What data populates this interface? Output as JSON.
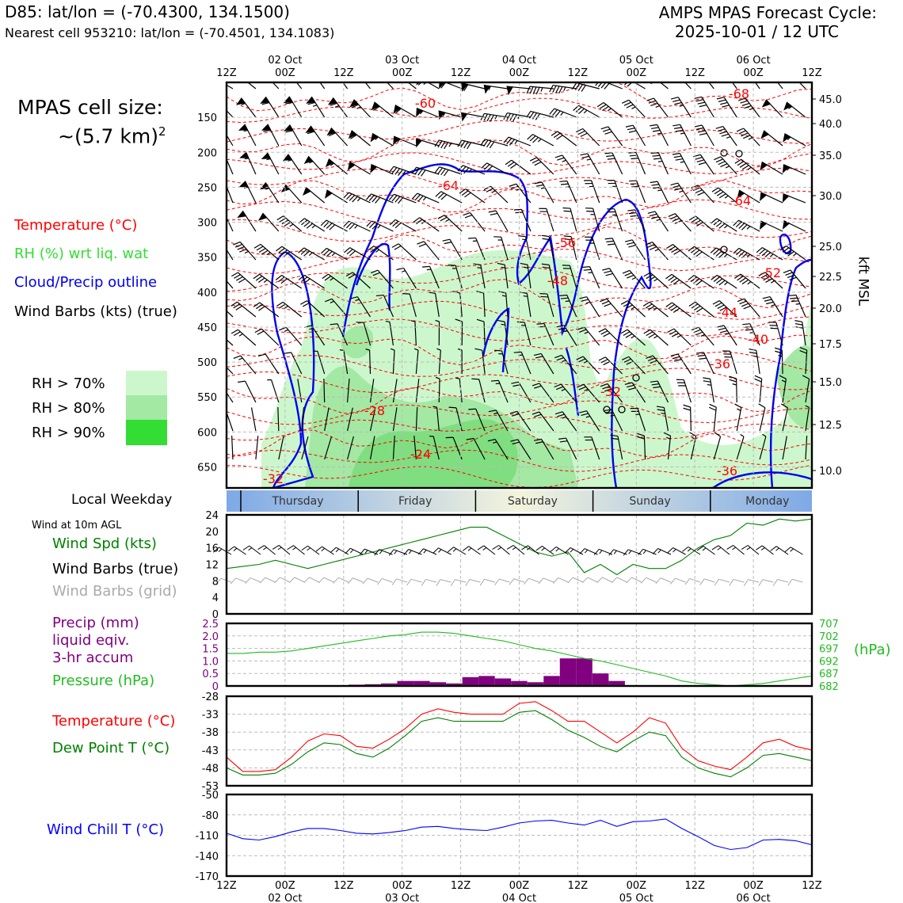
{
  "header": {
    "title": "D85: lat/lon = (-70.4300, 134.1500)",
    "subtitle": "Nearest cell 953210: lat/lon = (-70.4501, 134.1083)",
    "cycle_line1": "AMPS MPAS Forecast Cycle:",
    "cycle_line2": "2025-10-01 / 12 UTC"
  },
  "left_panel": {
    "cell_size_label": "MPAS cell size:",
    "cell_size_value": "~(5.7 km)",
    "cell_size_exp": "2",
    "legend_temperature": "Temperature (°C)",
    "legend_rh": "RH (%) wrt liq. wat",
    "legend_cloud": "Cloud/Precip outline",
    "legend_wind": "Wind Barbs (kts) (true)",
    "rh70": "RH > 70%",
    "rh80": "RH > 80%",
    "rh90": "RH > 90%",
    "local_weekday": "Local Weekday",
    "wind_10m": "Wind at 10m AGL",
    "wind_spd": "Wind Spd (kts)",
    "wind_barbs_true": "Wind Barbs (true)",
    "wind_barbs_grid": "Wind Barbs (grid)",
    "precip_l1": "Precip (mm)",
    "precip_l2": "liquid eqiv.",
    "precip_l3": "3-hr accum",
    "pressure": "Pressure (hPa)",
    "temperature": "Temperature (°C)",
    "dewpoint": "Dew Point T (°C)",
    "windchill": "Wind Chill T (°C)"
  },
  "colors": {
    "temperature": "#ff0000",
    "dewpoint": "#008000",
    "rh_text": "#33dd33",
    "cloud": "#0000ee",
    "precip": "#800080",
    "pressure": "#22bb22",
    "windchill": "#0000ff",
    "grid_barbs": "#aaaaaa",
    "rh70": "#ccf7cc",
    "rh80": "#a3e8a3",
    "rh90": "#33dd33"
  },
  "chart_data": [
    {
      "type": "heatmap",
      "name": "time-height cross section",
      "x_top_ticks": [
        "12Z",
        "00Z",
        "12Z",
        "00Z",
        "12Z",
        "00Z",
        "12Z",
        "00Z",
        "12Z",
        "00Z",
        "12Z"
      ],
      "x_top_dates": [
        "02 Oct",
        "03 Oct",
        "04 Oct",
        "05 Oct",
        "06 Oct"
      ],
      "ylabel_right": "kft MSL",
      "ylim_hpa": [
        680,
        100
      ],
      "y_left_ticks": [
        "150",
        "200",
        "250",
        "300",
        "350",
        "400",
        "450",
        "500",
        "550",
        "600",
        "650"
      ],
      "y_right_ticks": [
        "45.0",
        "40.0",
        "35.0",
        "30.0",
        "25.0",
        "22.5",
        "20.0",
        "17.5",
        "15.0",
        "12.5",
        "10.0"
      ],
      "temperature_contour_labels": [
        "-60",
        "-68",
        "-64",
        "-64",
        "-56",
        "-52",
        "-48",
        "-44",
        "-40",
        "-36",
        "-32",
        "-28",
        "-24",
        "-36",
        "-32"
      ],
      "wind_barb_columns": 26,
      "wind_barb_rows": 14
    },
    {
      "type": "table",
      "name": "local weekday strip",
      "days": [
        "Thursday",
        "Friday",
        "Saturday",
        "Sunday",
        "Monday"
      ]
    },
    {
      "type": "line",
      "name": "wind speed 10m",
      "ylim": [
        0,
        24
      ],
      "y_ticks": [
        "24",
        "20",
        "16",
        "12",
        "8",
        "4",
        "0"
      ],
      "series": [
        {
          "name": "Wind Spd (kts)",
          "values": [
            11,
            11.5,
            12,
            13,
            12,
            11,
            12,
            13,
            14,
            15,
            16,
            17,
            18,
            19,
            20,
            21,
            21,
            19,
            17,
            15,
            14,
            15,
            10,
            12,
            9.5,
            12,
            11,
            11,
            13,
            16,
            18,
            19,
            22,
            21.5,
            23,
            22.5,
            23
          ]
        }
      ]
    },
    {
      "type": "bar",
      "name": "precip and pressure",
      "precip_ylim": [
        0,
        2.5
      ],
      "precip_ticks": [
        "2.5",
        "2.0",
        "1.5",
        "1.0",
        "0.5",
        "0"
      ],
      "pressure_ylim": [
        682,
        707
      ],
      "pressure_ticks": [
        "707",
        "702",
        "697",
        "692",
        "687",
        "682"
      ],
      "pressure_unit": "(hPa)",
      "precip_values": [
        0,
        0,
        0,
        0,
        0,
        0,
        0,
        0.03,
        0.05,
        0.07,
        0.1,
        0.2,
        0.2,
        0.15,
        0.1,
        0.35,
        0.4,
        0.3,
        0.2,
        0.15,
        0.4,
        1.1,
        1.1,
        0.5,
        0.2,
        0,
        0,
        0,
        0,
        0,
        0,
        0,
        0,
        0,
        0,
        0,
        0
      ],
      "pressure_values": [
        695,
        695,
        695.5,
        695.5,
        696,
        697,
        698,
        699,
        700,
        701,
        702,
        702.5,
        703.5,
        703.5,
        703,
        702,
        701,
        700,
        698.5,
        697,
        696,
        694.5,
        693,
        692,
        690.5,
        689,
        687.5,
        686,
        684,
        683,
        682.5,
        682,
        682.5,
        683,
        684,
        685,
        686
      ]
    },
    {
      "type": "line",
      "name": "temperature and dew point",
      "ylim": [
        -53,
        -28
      ],
      "y_ticks": [
        "-28",
        "-33",
        "-38",
        "-43",
        "-48",
        "-53"
      ],
      "series": [
        {
          "name": "Temperature (°C)",
          "values": [
            -45,
            -49,
            -49,
            -48.5,
            -45,
            -40.5,
            -38.5,
            -39,
            -42,
            -42.5,
            -40,
            -37,
            -33,
            -31.5,
            -32.5,
            -33,
            -33,
            -33,
            -30,
            -29.5,
            -32,
            -35,
            -35,
            -38,
            -41,
            -38,
            -34,
            -35.5,
            -42.5,
            -46,
            -47.5,
            -48.5,
            -45,
            -41,
            -40,
            -42,
            -43
          ]
        },
        {
          "name": "Dew Point T (°C)",
          "values": [
            -48,
            -50,
            -50,
            -49.5,
            -47,
            -43.5,
            -41,
            -41.5,
            -44,
            -45,
            -42.5,
            -39,
            -35,
            -34,
            -35,
            -35,
            -35,
            -35,
            -32.5,
            -32,
            -34.5,
            -37.5,
            -39.5,
            -42,
            -43.5,
            -40.5,
            -38,
            -39,
            -45,
            -48,
            -49.5,
            -50.5,
            -48,
            -44.5,
            -44,
            -45,
            -46
          ]
        }
      ]
    },
    {
      "type": "line",
      "name": "wind chill",
      "ylim": [
        -170,
        -50
      ],
      "y_ticks": [
        "-50",
        "-80",
        "-110",
        "-140",
        "-170"
      ],
      "series": [
        {
          "name": "Wind Chill T (°C)",
          "values": [
            -107,
            -115,
            -117,
            -112,
            -105,
            -100,
            -100,
            -103,
            -107,
            -108,
            -106,
            -103,
            -98,
            -97,
            -100,
            -102,
            -103,
            -98,
            -92,
            -89,
            -88,
            -92,
            -95,
            -88,
            -97,
            -90,
            -89,
            -86,
            -100,
            -112,
            -125,
            -131,
            -128,
            -117,
            -116,
            -118,
            -124
          ]
        }
      ]
    }
  ],
  "x_bottom": {
    "ticks": [
      "12Z",
      "00Z",
      "12Z",
      "00Z",
      "12Z",
      "00Z",
      "12Z",
      "00Z",
      "12Z",
      "00Z",
      "12Z"
    ],
    "dates": [
      "02 Oct",
      "03 Oct",
      "04 Oct",
      "05 Oct",
      "06 Oct"
    ]
  }
}
